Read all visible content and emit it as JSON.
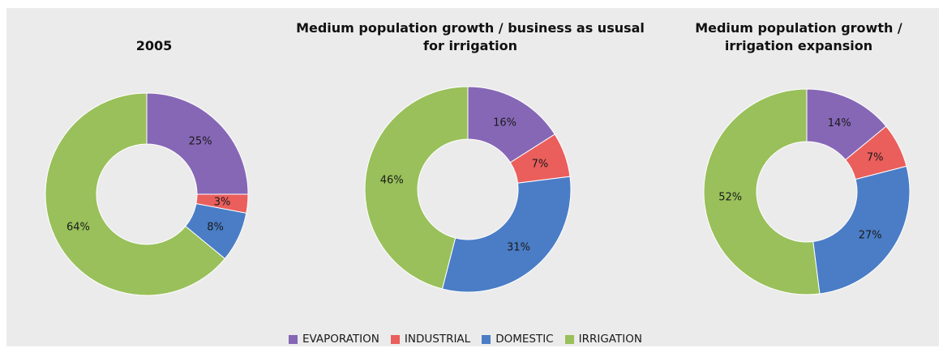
{
  "chart_data": {
    "type": "pie",
    "legend": [
      {
        "label": "EVAPORATION",
        "color": "#8667b6"
      },
      {
        "label": "INDUSTRIAL",
        "color": "#ea5e5c"
      },
      {
        "label": "DOMESTIC",
        "color": "#4a7dc6"
      },
      {
        "label": "IRRIGATION",
        "color": "#99c05a"
      }
    ],
    "legend_position": "bottom",
    "charts": [
      {
        "title": "2005",
        "slices": [
          {
            "label": "EVAPORATION",
            "value": 25,
            "text": "25%"
          },
          {
            "label": "INDUSTRIAL",
            "value": 3,
            "text": "3%"
          },
          {
            "label": "DOMESTIC",
            "value": 8,
            "text": "8%"
          },
          {
            "label": "IRRIGATION",
            "value": 64,
            "text": "64%"
          }
        ]
      },
      {
        "title": "Medium population growth / business as ususal for irrigation",
        "slices": [
          {
            "label": "EVAPORATION",
            "value": 16,
            "text": "16%"
          },
          {
            "label": "INDUSTRIAL",
            "value": 7,
            "text": "7%"
          },
          {
            "label": "DOMESTIC",
            "value": 31,
            "text": "31%"
          },
          {
            "label": "IRRIGATION",
            "value": 46,
            "text": "46%"
          }
        ]
      },
      {
        "title": "Medium population growth / irrigation expansion",
        "slices": [
          {
            "label": "EVAPORATION",
            "value": 14,
            "text": "14%"
          },
          {
            "label": "INDUSTRIAL",
            "value": 7,
            "text": "7%"
          },
          {
            "label": "DOMESTIC",
            "value": 27,
            "text": "27%"
          },
          {
            "label": "IRRIGATION",
            "value": 52,
            "text": "52%"
          }
        ]
      }
    ]
  }
}
